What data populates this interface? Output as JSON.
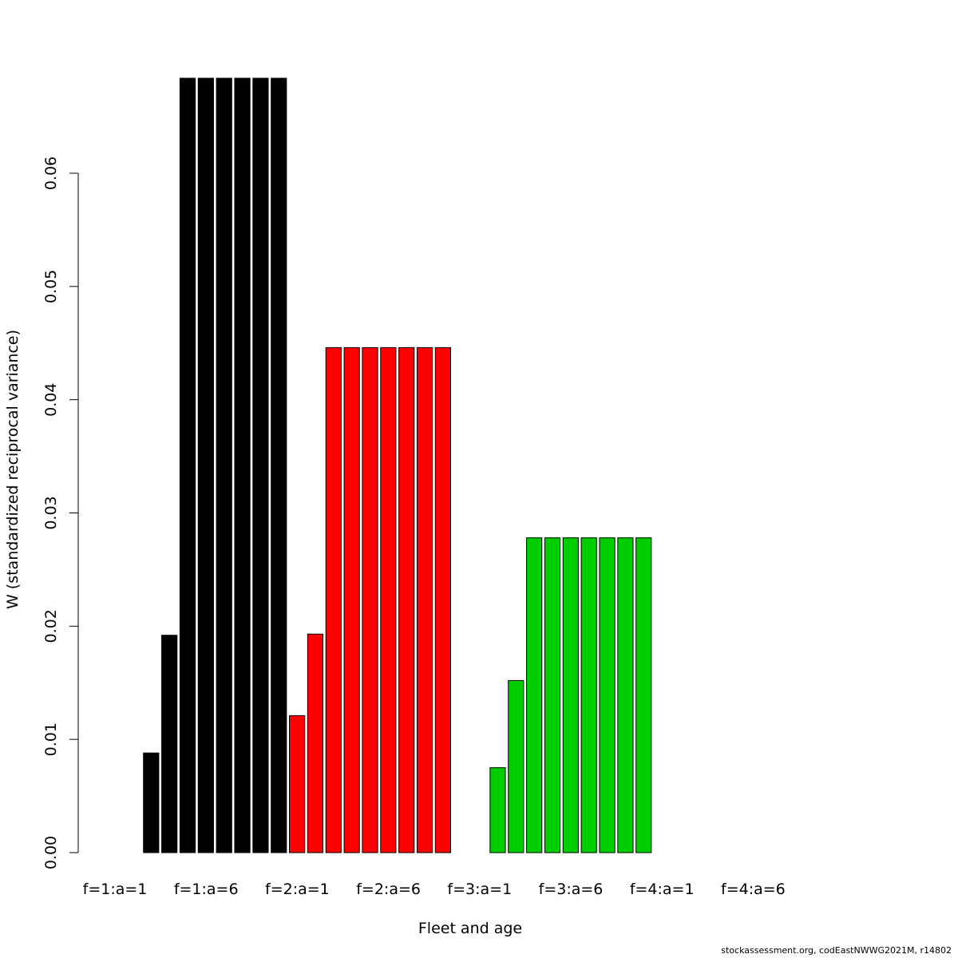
{
  "chart_data": {
    "type": "bar",
    "xlabel": "Fleet and age",
    "ylabel": "W (standardized reciprocal variance)",
    "ylim": [
      0,
      0.06
    ],
    "yticks": [
      0.0,
      0.01,
      0.02,
      0.03,
      0.04,
      0.05,
      0.06
    ],
    "ytick_labels": [
      "0.00",
      "0.01",
      "0.02",
      "0.03",
      "0.04",
      "0.05",
      "0.06"
    ],
    "xtick_labels": [
      "f=1:a=1",
      "f=1:a=6",
      "f=2:a=1",
      "f=2:a=6",
      "f=3:a=1",
      "f=3:a=6",
      "f=4:a=1",
      "f=4:a=6"
    ],
    "fleets": [
      {
        "fleet": 1,
        "color": "#000000",
        "values": [
          0,
          0,
          0.0088,
          0.0192,
          0.0685,
          0.0685,
          0.0685,
          0.0685,
          0.0685,
          0.0685
        ]
      },
      {
        "fleet": 2,
        "color": "#ff0000",
        "values": [
          0.0121,
          0.0193,
          0.0446,
          0.0446,
          0.0446,
          0.0446,
          0.0446,
          0.0446,
          0.0446,
          0
        ]
      },
      {
        "fleet": 3,
        "color": "#00cd00",
        "values": [
          0,
          0.0075,
          0.0152,
          0.0278,
          0.0278,
          0.0278,
          0.0278,
          0.0278,
          0.0278,
          0.0278
        ]
      },
      {
        "fleet": 4,
        "color": "#0000ff",
        "values": [
          0,
          0,
          0,
          0,
          0,
          0,
          0,
          0,
          0,
          0
        ]
      }
    ]
  },
  "footer": "stockassessment.org, codEastNWWG2021M, r14802"
}
